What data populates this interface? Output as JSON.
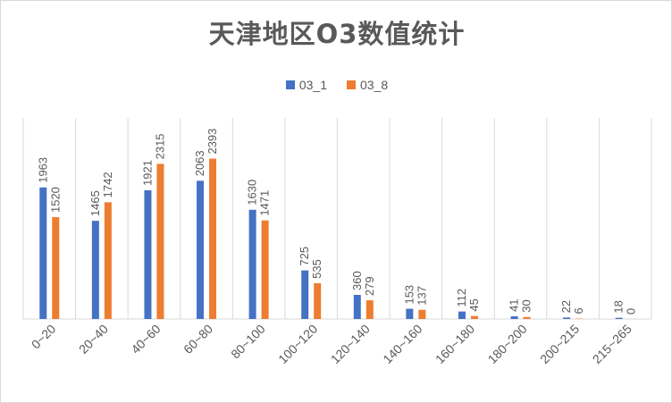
{
  "chart_data": {
    "type": "bar",
    "title": "天津地区O3数值统计",
    "categories": [
      "0~20",
      "20~40",
      "40~60",
      "60~80",
      "80~100",
      "100~120",
      "120~140",
      "140~160",
      "160~180",
      "180~200",
      "200~215",
      "215~265"
    ],
    "series": [
      {
        "name": "03_1",
        "color": "#4472c4",
        "values": [
          1963,
          1465,
          1921,
          2063,
          1630,
          725,
          360,
          153,
          112,
          41,
          22,
          18
        ]
      },
      {
        "name": "03_8",
        "color": "#ed7d31",
        "values": [
          1520,
          1742,
          2315,
          2393,
          1471,
          535,
          279,
          137,
          45,
          30,
          6,
          0
        ]
      }
    ],
    "ylim": [
      0,
      3000
    ],
    "grid": "vertical category separators",
    "legend_position": "top"
  }
}
